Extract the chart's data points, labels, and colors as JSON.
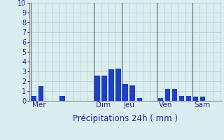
{
  "xlabel": "Précipitations 24h ( mm )",
  "background_color": "#daeef0",
  "bar_color": "#1a3fcc",
  "grid_color": "#b8cece",
  "day_line_color": "#606060",
  "ylim": [
    0,
    10
  ],
  "yticks": [
    0,
    1,
    2,
    3,
    4,
    5,
    6,
    7,
    8,
    9,
    10
  ],
  "day_labels": [
    "Mer",
    "Dim",
    "Jeu",
    "Ven",
    "Sam"
  ],
  "bar_positions": [
    0,
    1,
    4,
    9,
    10,
    11,
    12,
    13,
    14,
    15,
    18,
    19,
    20,
    21,
    22,
    23,
    24
  ],
  "bar_heights": [
    0.5,
    1.5,
    0.5,
    2.6,
    2.6,
    3.2,
    3.3,
    1.7,
    1.6,
    0.3,
    0.3,
    1.2,
    1.2,
    0.5,
    0.5,
    0.45,
    0.4
  ],
  "num_slots": 27,
  "xlabel_fontsize": 8.5,
  "tick_fontsize": 7,
  "day_label_fontsize": 7.5
}
